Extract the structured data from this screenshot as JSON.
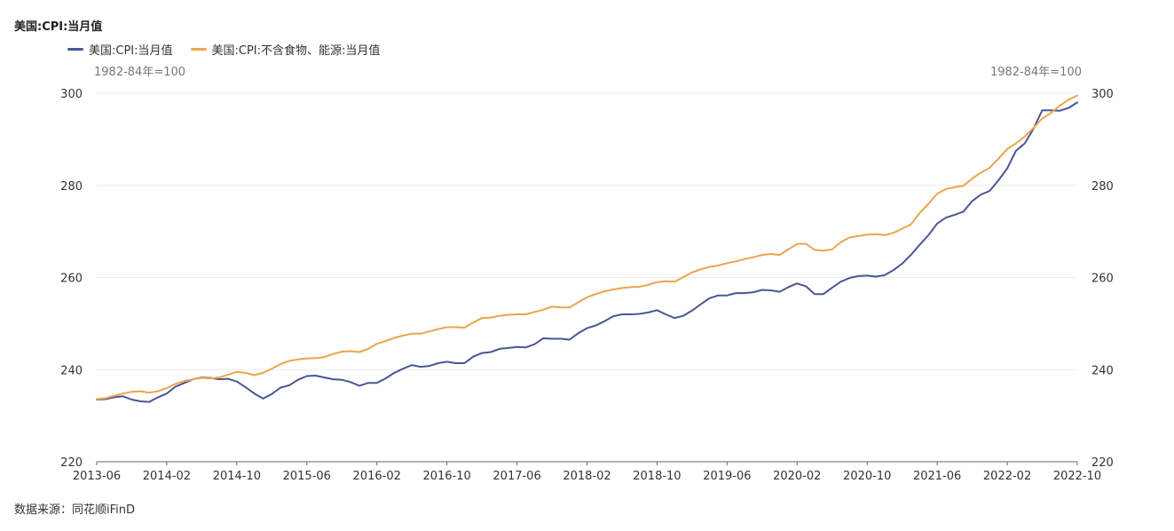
{
  "title": "美国:CPI:当月值",
  "unit_left": "1982-84年=100",
  "unit_right": "1982-84年=100",
  "source": "数据来源：同花顺iFinD",
  "colors": {
    "cpi": "#4a5694",
    "core": "#eda44d"
  },
  "chart_data": {
    "type": "line",
    "title": "美国:CPI:当月值",
    "ylim": [
      220,
      300
    ],
    "yticks": [
      220,
      240,
      260,
      280,
      300
    ],
    "xticks": [
      "2013-06",
      "2014-02",
      "2014-10",
      "2015-06",
      "2016-02",
      "2016-10",
      "2017-06",
      "2018-02",
      "2018-10",
      "2019-06",
      "2020-02",
      "2020-10",
      "2021-06",
      "2022-02",
      "2022-10"
    ],
    "grid": true,
    "legend": "top-left",
    "series": [
      {
        "name": "美国:CPI:当月值",
        "color": "#4a5694",
        "values": [
          233.5,
          233.6,
          234.0,
          234.2,
          233.5,
          233.1,
          233.0,
          234.0,
          234.8,
          236.3,
          237.1,
          237.9,
          238.3,
          238.2,
          237.9,
          238.0,
          237.4,
          236.2,
          234.8,
          233.7,
          234.7,
          236.1,
          236.6,
          237.8,
          238.6,
          238.7,
          238.3,
          237.9,
          237.8,
          237.3,
          236.5,
          237.1,
          237.1,
          238.1,
          239.3,
          240.2,
          241.0,
          240.6,
          240.8,
          241.4,
          241.7,
          241.4,
          241.4,
          242.8,
          243.6,
          243.8,
          244.5,
          244.7,
          244.9,
          244.8,
          245.5,
          246.8,
          246.7,
          246.7,
          246.5,
          247.9,
          249.0,
          249.6,
          250.5,
          251.6,
          252.0,
          252.0,
          252.1,
          252.4,
          252.9,
          252.0,
          251.2,
          251.7,
          252.8,
          254.2,
          255.5,
          256.1,
          256.1,
          256.6,
          256.6,
          256.8,
          257.3,
          257.2,
          256.9,
          257.9,
          258.7,
          258.1,
          256.4,
          256.4,
          257.8,
          259.1,
          259.9,
          260.3,
          260.4,
          260.2,
          260.5,
          261.6,
          263.0,
          264.9,
          267.1,
          269.2,
          271.7,
          273.0,
          273.6,
          274.3,
          276.6,
          278.0,
          278.8,
          281.1,
          283.7,
          287.5,
          289.1,
          292.3,
          296.3,
          296.3,
          296.2,
          296.8,
          298.0
        ]
      },
      {
        "name": "美国:CPI:不含食物、能源:当月值",
        "color": "#eda44d",
        "values": [
          233.6,
          233.8,
          234.3,
          234.8,
          235.2,
          235.3,
          235.0,
          235.3,
          236.0,
          236.9,
          237.5,
          237.9,
          238.2,
          238.1,
          238.3,
          238.9,
          239.5,
          239.3,
          238.8,
          239.3,
          240.2,
          241.2,
          241.9,
          242.2,
          242.4,
          242.5,
          242.7,
          243.4,
          243.9,
          244.0,
          243.8,
          244.5,
          245.6,
          246.2,
          246.9,
          247.4,
          247.8,
          247.8,
          248.3,
          248.8,
          249.2,
          249.2,
          249.1,
          250.2,
          251.2,
          251.3,
          251.7,
          251.9,
          252.0,
          252.0,
          252.5,
          253.0,
          253.7,
          253.5,
          253.5,
          254.6,
          255.7,
          256.4,
          257.0,
          257.4,
          257.7,
          257.9,
          258.0,
          258.4,
          259.0,
          259.2,
          259.1,
          260.1,
          261.1,
          261.8,
          262.3,
          262.6,
          263.1,
          263.5,
          264.0,
          264.4,
          264.9,
          265.1,
          264.9,
          266.1,
          267.3,
          267.3,
          266.0,
          265.8,
          266.1,
          267.7,
          268.7,
          269.0,
          269.3,
          269.4,
          269.2,
          269.7,
          270.6,
          271.5,
          274.0,
          276.0,
          278.2,
          279.2,
          279.6,
          279.9,
          281.5,
          282.8,
          283.8,
          285.8,
          287.9,
          289.1,
          290.6,
          292.5,
          294.5,
          295.7,
          297.3,
          298.6,
          299.5
        ]
      }
    ]
  }
}
